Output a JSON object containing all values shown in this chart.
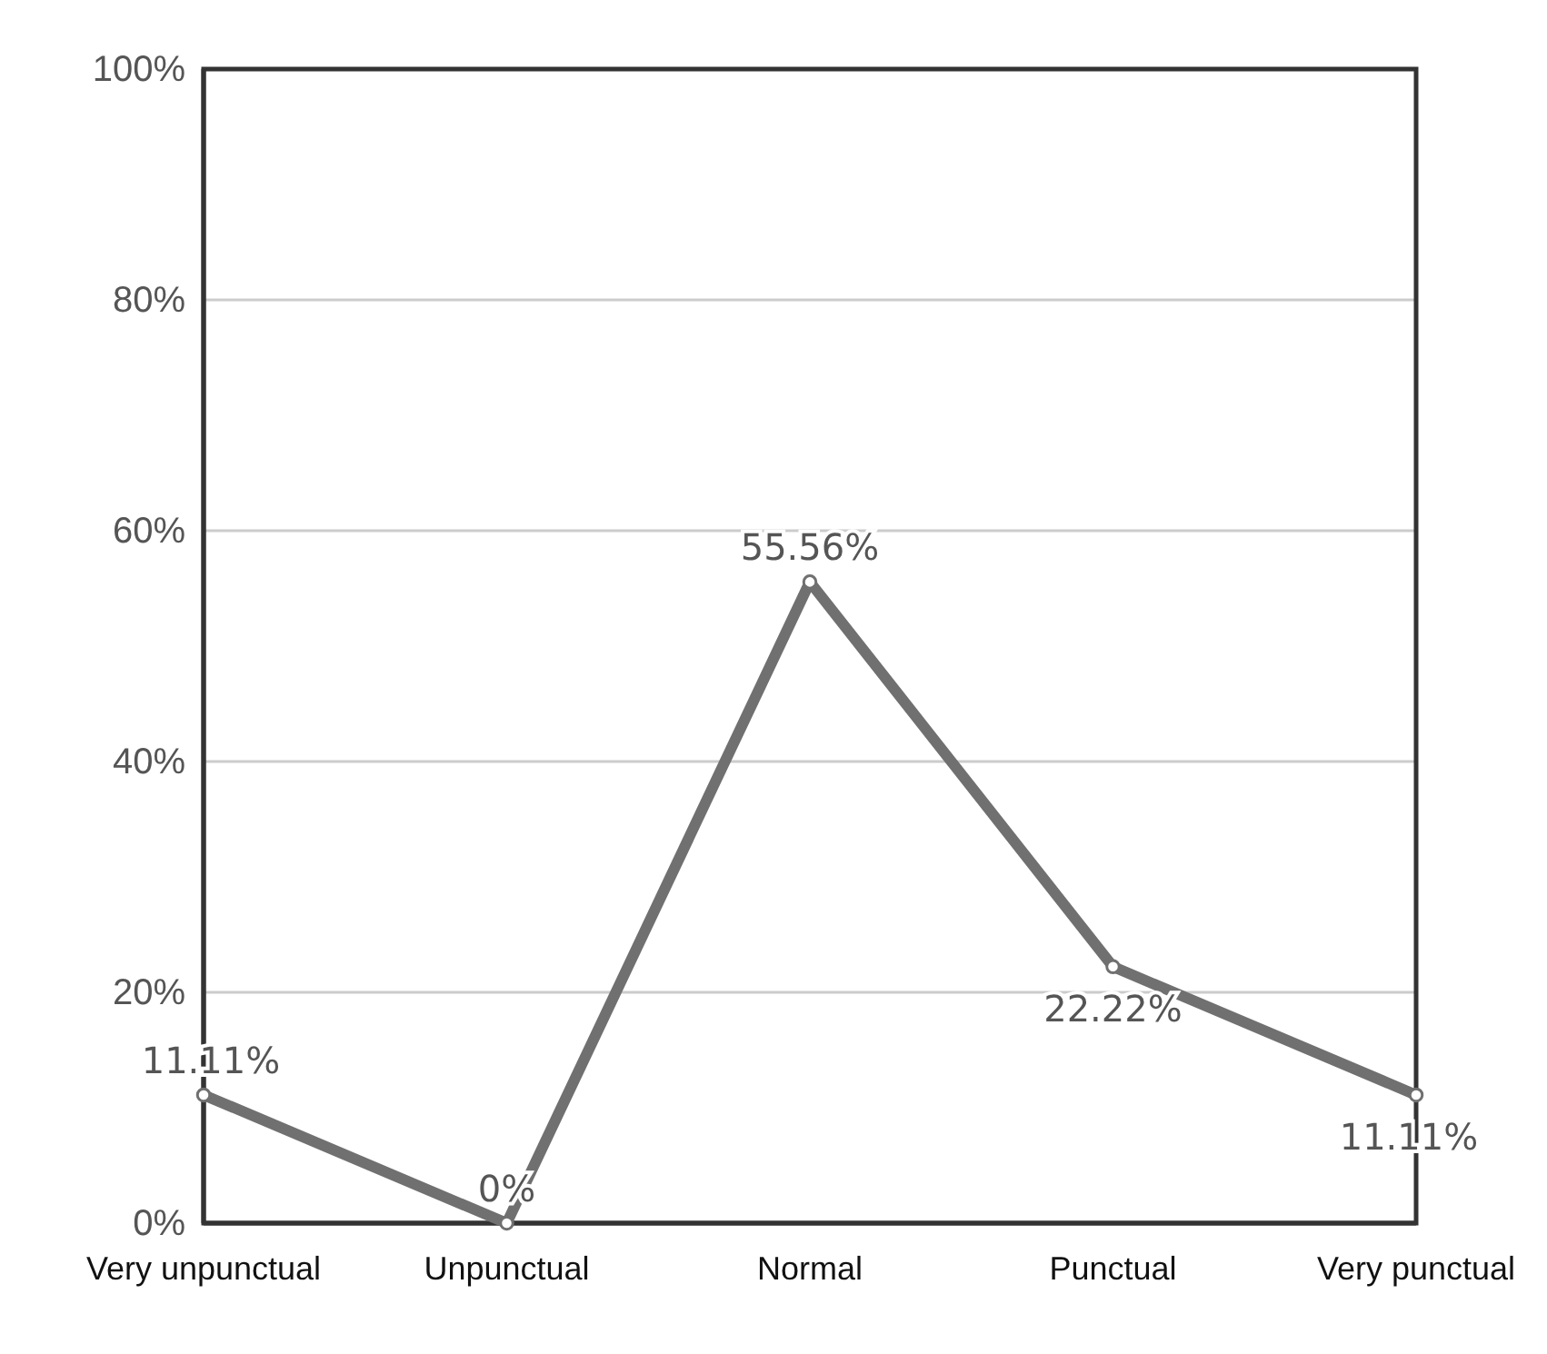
{
  "chart_data": {
    "type": "line",
    "categories": [
      "Very unpunctual",
      "Unpunctual",
      "Normal",
      "Punctual",
      "Very punctual"
    ],
    "series": [
      {
        "color": "#707070",
        "values": [
          11.11,
          0,
          55.56,
          22.22,
          11.11
        ],
        "value_labels": [
          "11.11%",
          "0%",
          "55.56%",
          "22.22%",
          "11.11%"
        ]
      }
    ],
    "ylim": [
      0,
      100
    ],
    "yticks": [
      {
        "value": 0,
        "label": "0%"
      },
      {
        "value": 20,
        "label": "20%"
      },
      {
        "value": 40,
        "label": "40%"
      },
      {
        "value": 60,
        "label": "60%"
      },
      {
        "value": 80,
        "label": "80%"
      },
      {
        "value": 100,
        "label": "100%"
      }
    ],
    "grid": "y",
    "marker": "circle",
    "line_style": "solid"
  }
}
